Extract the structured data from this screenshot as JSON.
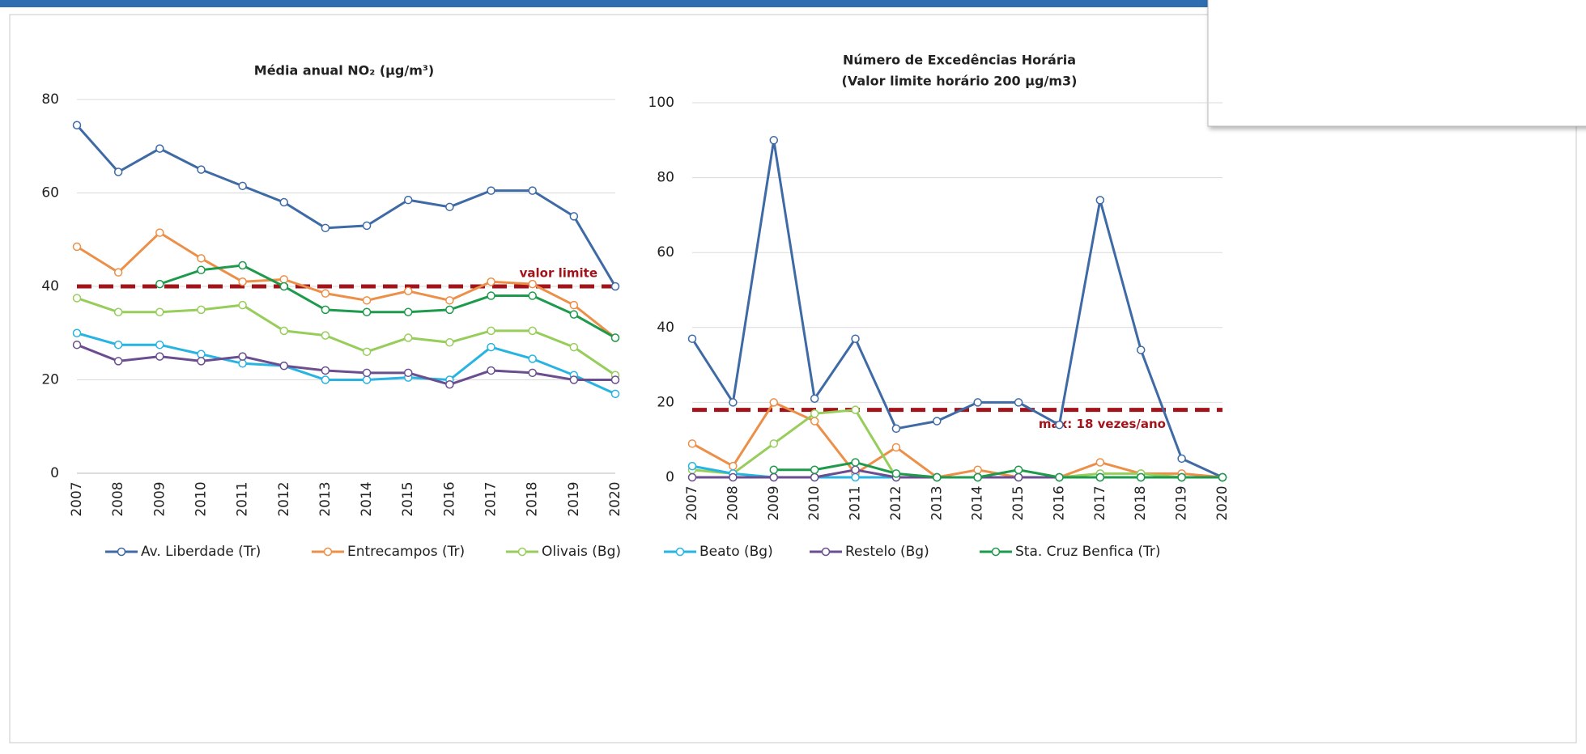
{
  "chart_data": [
    {
      "type": "line",
      "title": "Média anual NO₂ (µg/m³)",
      "categories": [
        "2007",
        "2008",
        "2009",
        "2010",
        "2011",
        "2012",
        "2013",
        "2014",
        "2015",
        "2016",
        "2017",
        "2018",
        "2019",
        "2020"
      ],
      "ylim": [
        0,
        80
      ],
      "yticks": [
        0,
        20,
        40,
        60,
        80
      ],
      "grid": true,
      "limit": {
        "value": 40,
        "label": "valor limite",
        "color": "#a3131a"
      },
      "series": [
        {
          "name": "Av. Liberdade (Tr)",
          "color": "#3e6aa5",
          "values": [
            74.5,
            64.5,
            69.5,
            65,
            61.5,
            58,
            52.5,
            53,
            58.5,
            57,
            60.5,
            60.5,
            55,
            40
          ]
        },
        {
          "name": "Entrecampos (Tr)",
          "color": "#ec8f48",
          "values": [
            48.5,
            43,
            51.5,
            46,
            41,
            41.5,
            38.5,
            37,
            39,
            37,
            41,
            40.5,
            36,
            29
          ]
        },
        {
          "name": "Olivais (Bg)",
          "color": "#97cd5a",
          "values": [
            37.5,
            34.5,
            34.5,
            35,
            36,
            30.5,
            29.5,
            26,
            29,
            28,
            30.5,
            30.5,
            27,
            21
          ]
        },
        {
          "name": "Beato (Bg)",
          "color": "#27b4e2",
          "values": [
            30,
            27.5,
            27.5,
            25.5,
            23.5,
            23,
            20,
            20,
            20.5,
            20,
            27,
            24.5,
            21,
            17
          ]
        },
        {
          "name": "Restelo (Bg)",
          "color": "#6a4e8f",
          "values": [
            27.5,
            24,
            25,
            24,
            25,
            23,
            22,
            21.5,
            21.5,
            19,
            22,
            21.5,
            20,
            20
          ]
        },
        {
          "name": "Sta. Cruz Benfica (Tr)",
          "color": "#1e9a4c",
          "values": [
            null,
            null,
            40.5,
            43.5,
            44.5,
            40,
            35,
            34.5,
            34.5,
            35,
            38,
            38,
            34,
            29
          ]
        }
      ]
    },
    {
      "type": "line",
      "title": "Número de Excedências Horária",
      "subtitle": "(Valor limite horário 200 µg/m3)",
      "categories": [
        "2007",
        "2008",
        "2009",
        "2010",
        "2011",
        "2012",
        "2013",
        "2014",
        "2015",
        "2016",
        "2017",
        "2018",
        "2019",
        "2020"
      ],
      "ylim": [
        0,
        100
      ],
      "yticks": [
        0,
        20,
        40,
        60,
        80,
        100
      ],
      "grid": true,
      "limit": {
        "value": 18,
        "label": "max: 18 vezes/ano",
        "color": "#a3131a"
      },
      "series": [
        {
          "color": "#3e6aa5",
          "values": [
            37,
            20,
            90,
            21,
            37,
            13,
            15,
            20,
            20,
            14,
            74,
            34,
            5,
            0
          ]
        },
        {
          "color": "#ec8f48",
          "values": [
            9,
            3,
            20,
            15,
            1,
            8,
            0,
            2,
            0,
            0,
            4,
            1,
            1,
            0
          ]
        },
        {
          "color": "#97cd5a",
          "values": [
            2,
            1,
            9,
            17,
            18,
            0,
            0,
            0,
            0,
            0,
            1,
            1,
            0,
            0
          ]
        },
        {
          "color": "#27b4e2",
          "values": [
            3,
            1,
            0,
            0,
            0,
            0,
            0,
            0,
            0,
            0,
            0,
            0,
            0,
            0
          ]
        },
        {
          "color": "#6a4e8f",
          "values": [
            0,
            0,
            0,
            0,
            2,
            0,
            0,
            0,
            0,
            0,
            0,
            0,
            0,
            0
          ]
        },
        {
          "color": "#1e9a4c",
          "values": [
            null,
            null,
            2,
            2,
            4,
            1,
            0,
            0,
            2,
            0,
            0,
            0,
            0,
            0
          ]
        }
      ]
    }
  ]
}
